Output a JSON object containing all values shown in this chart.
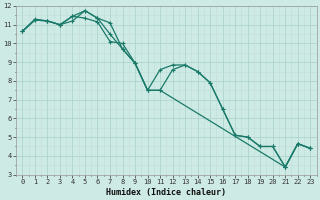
{
  "xlabel": "Humidex (Indice chaleur)",
  "bg_color": "#ceeae4",
  "grid_major_color": "#aed4ce",
  "grid_minor_color": "#beddda",
  "line_color": "#1a7a6a",
  "xlim": [
    -0.5,
    23.5
  ],
  "ylim": [
    3,
    12
  ],
  "xticks": [
    0,
    1,
    2,
    3,
    4,
    5,
    6,
    7,
    8,
    9,
    10,
    11,
    12,
    13,
    14,
    15,
    16,
    17,
    18,
    19,
    20,
    21,
    22,
    23
  ],
  "yticks": [
    3,
    4,
    5,
    6,
    7,
    8,
    9,
    10,
    11,
    12
  ],
  "line1_x": [
    0,
    1,
    2,
    3,
    4,
    5,
    6,
    7,
    8,
    9,
    10,
    11,
    12,
    13,
    14,
    15,
    16,
    17,
    18,
    19,
    20,
    21,
    22,
    23
  ],
  "line1_y": [
    10.65,
    11.25,
    11.2,
    11.0,
    11.45,
    11.35,
    11.15,
    10.1,
    10.0,
    8.95,
    7.5,
    8.6,
    8.85,
    8.85,
    8.5,
    7.9,
    6.5,
    5.1,
    5.0,
    4.5,
    4.5,
    3.4,
    4.65,
    4.4
  ],
  "line2_x": [
    0,
    1,
    2,
    3,
    4,
    5,
    6,
    7,
    8,
    9,
    10,
    11,
    12,
    13,
    14,
    15,
    16,
    17,
    18,
    19,
    20,
    21,
    22,
    23
  ],
  "line2_y": [
    10.65,
    11.25,
    11.2,
    11.0,
    11.45,
    11.75,
    11.35,
    11.1,
    9.7,
    8.95,
    7.5,
    7.5,
    8.6,
    8.85,
    8.5,
    7.9,
    6.5,
    5.1,
    5.0,
    4.5,
    4.5,
    3.4,
    4.65,
    4.4
  ],
  "line3_x": [
    0,
    1,
    2,
    3,
    4,
    5,
    6,
    7,
    8,
    9,
    10,
    11,
    21,
    22,
    23
  ],
  "line3_y": [
    10.65,
    11.3,
    11.2,
    11.0,
    11.2,
    11.75,
    11.35,
    10.5,
    9.7,
    8.95,
    7.5,
    7.5,
    3.4,
    4.65,
    4.4
  ],
  "xlabel_fontsize": 6,
  "tick_fontsize": 5,
  "linewidth": 0.9,
  "markersize": 3
}
